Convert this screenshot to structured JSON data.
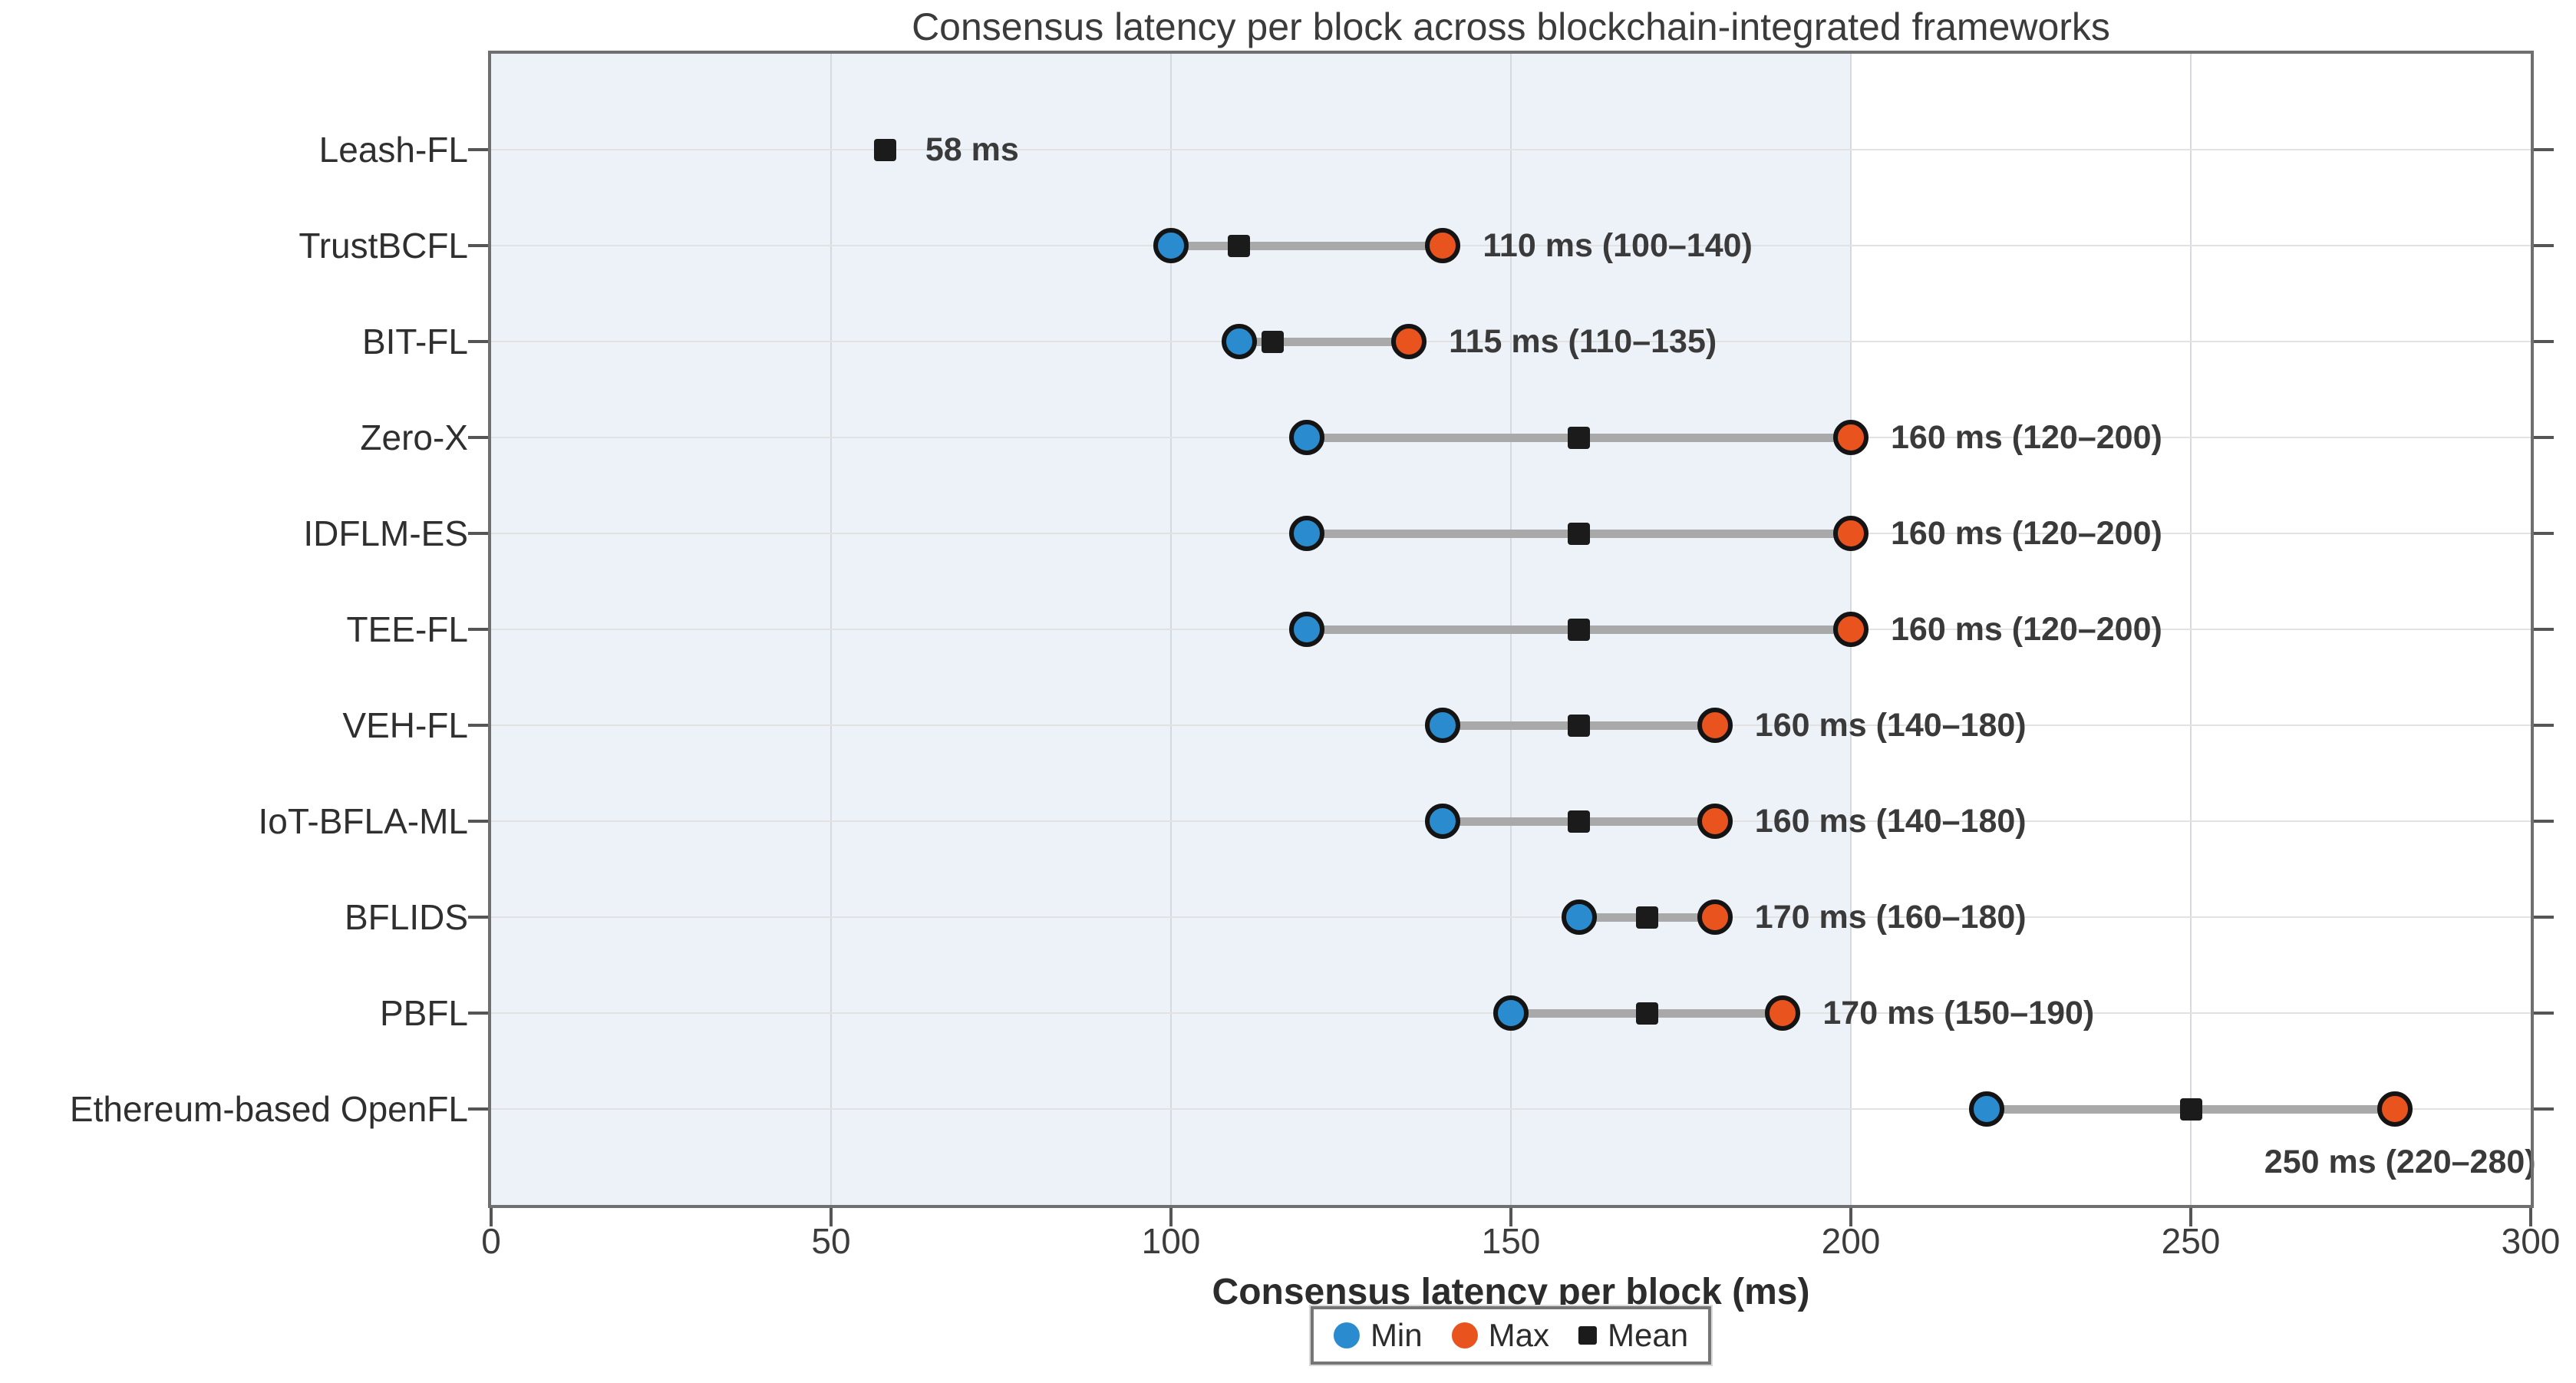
{
  "title": "Consensus latency per block across blockchain-integrated frameworks",
  "xlabel": "Consensus latency per block (ms)",
  "colors": {
    "min": "#2a8cce",
    "max": "#e8531e",
    "mean": "#1b1b1b",
    "marker_edge": "#141414",
    "range_line": "#a9a9a9",
    "shaded_band": "#edf1f8",
    "frame": "#6f6f6f"
  },
  "legend": [
    {
      "label": "Min",
      "marker": "circle",
      "color": "#2a8cce"
    },
    {
      "label": "Max",
      "marker": "circle",
      "color": "#e8531e"
    },
    {
      "label": "Mean",
      "marker": "square",
      "color": "#1b1b1b"
    }
  ],
  "chart_data": {
    "type": "scatter",
    "subtype": "dumbbell-range",
    "title": "Consensus latency per block across blockchain-integrated frameworks",
    "xlabel": "Consensus latency per block (ms)",
    "ylabel": "",
    "xlim": [
      0,
      300
    ],
    "x_ticks": [
      0,
      50,
      100,
      150,
      200,
      250,
      300
    ],
    "grid": true,
    "legend_position": "bottom-center",
    "shaded_band_x": [
      0,
      200
    ],
    "categories": [
      "Leash-FL",
      "TrustBCFL",
      "BIT-FL",
      "Zero-X",
      "IDFLM-ES",
      "TEE-FL",
      "VEH-FL",
      "IoT-BFLA-ML",
      "BFLIDS",
      "PBFL",
      "Ethereum-based OpenFL"
    ],
    "rows": [
      {
        "framework": "Leash-FL",
        "min": null,
        "max": null,
        "mean": 58,
        "annotation": "58 ms",
        "annotation_position": "right"
      },
      {
        "framework": "TrustBCFL",
        "min": 100,
        "max": 140,
        "mean": 110,
        "annotation": "110 ms (100–140)",
        "annotation_position": "right"
      },
      {
        "framework": "BIT-FL",
        "min": 110,
        "max": 135,
        "mean": 115,
        "annotation": "115 ms (110–135)",
        "annotation_position": "right"
      },
      {
        "framework": "Zero-X",
        "min": 120,
        "max": 200,
        "mean": 160,
        "annotation": "160 ms (120–200)",
        "annotation_position": "right"
      },
      {
        "framework": "IDFLM-ES",
        "min": 120,
        "max": 200,
        "mean": 160,
        "annotation": "160 ms (120–200)",
        "annotation_position": "right"
      },
      {
        "framework": "TEE-FL",
        "min": 120,
        "max": 200,
        "mean": 160,
        "annotation": "160 ms (120–200)",
        "annotation_position": "right"
      },
      {
        "framework": "VEH-FL",
        "min": 140,
        "max": 180,
        "mean": 160,
        "annotation": "160 ms (140–180)",
        "annotation_position": "right"
      },
      {
        "framework": "IoT-BFLA-ML",
        "min": 140,
        "max": 180,
        "mean": 160,
        "annotation": "160 ms (140–180)",
        "annotation_position": "right"
      },
      {
        "framework": "BFLIDS",
        "min": 160,
        "max": 180,
        "mean": 170,
        "annotation": "170 ms (160–180)",
        "annotation_position": "right"
      },
      {
        "framework": "PBFL",
        "min": 150,
        "max": 190,
        "mean": 170,
        "annotation": "170 ms (150–190)",
        "annotation_position": "right"
      },
      {
        "framework": "Ethereum-based OpenFL",
        "min": 220,
        "max": 280,
        "mean": 250,
        "annotation": "250 ms (220–280)",
        "annotation_position": "below"
      }
    ]
  }
}
